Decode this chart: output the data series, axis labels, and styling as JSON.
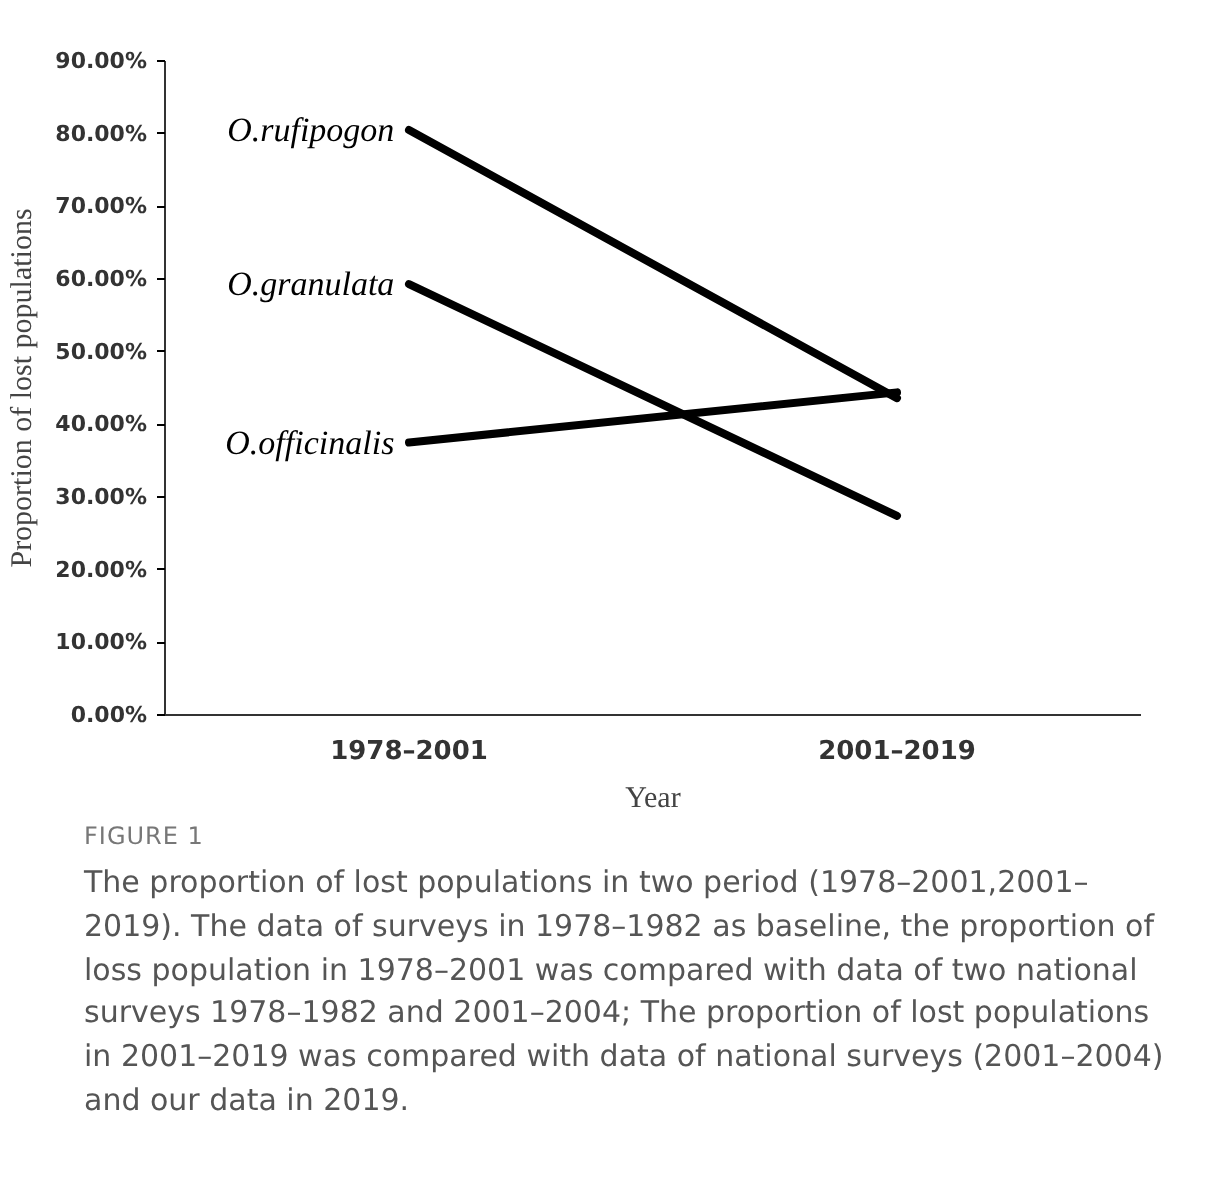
{
  "chart_data": {
    "type": "line",
    "xlabel": "Year",
    "ylabel": "Proportion of lost populations",
    "categories": [
      "1978–2001",
      "2001–2019"
    ],
    "series": [
      {
        "name": "O.rufipogon",
        "color": "#000000",
        "values": [
          80.5,
          43.6
        ]
      },
      {
        "name": "O.granulata",
        "color": "#000000",
        "values": [
          59.3,
          27.4
        ]
      },
      {
        "name": "O.officinalis",
        "color": "#000000",
        "values": [
          37.5,
          44.4
        ]
      }
    ],
    "ylim": [
      0,
      90
    ],
    "yticks": [
      {
        "value": 0,
        "label": "0.00%"
      },
      {
        "value": 10,
        "label": "10.00%"
      },
      {
        "value": 20,
        "label": "20.00%"
      },
      {
        "value": 30,
        "label": "30.00%"
      },
      {
        "value": 40,
        "label": "40.00%"
      },
      {
        "value": 50,
        "label": "50.00%"
      },
      {
        "value": 60,
        "label": "60.00%"
      },
      {
        "value": 70,
        "label": "70.00%"
      },
      {
        "value": 80,
        "label": "80.00%"
      },
      {
        "value": 90,
        "label": "90.00%"
      }
    ],
    "annotations": [
      "FIGURE 1",
      "The proportion of lost populations in two period (1978–2001,2001–2019). The data of surveys in 1978–1982 as baseline, the proportion of loss population in 1978–2001 was compared with data of two national surveys 1978–1982 and 2001–2004; The proportion of lost populations in 2001–2019 was compared with data of national surveys (2001–2004) and our data in 2019."
    ]
  }
}
